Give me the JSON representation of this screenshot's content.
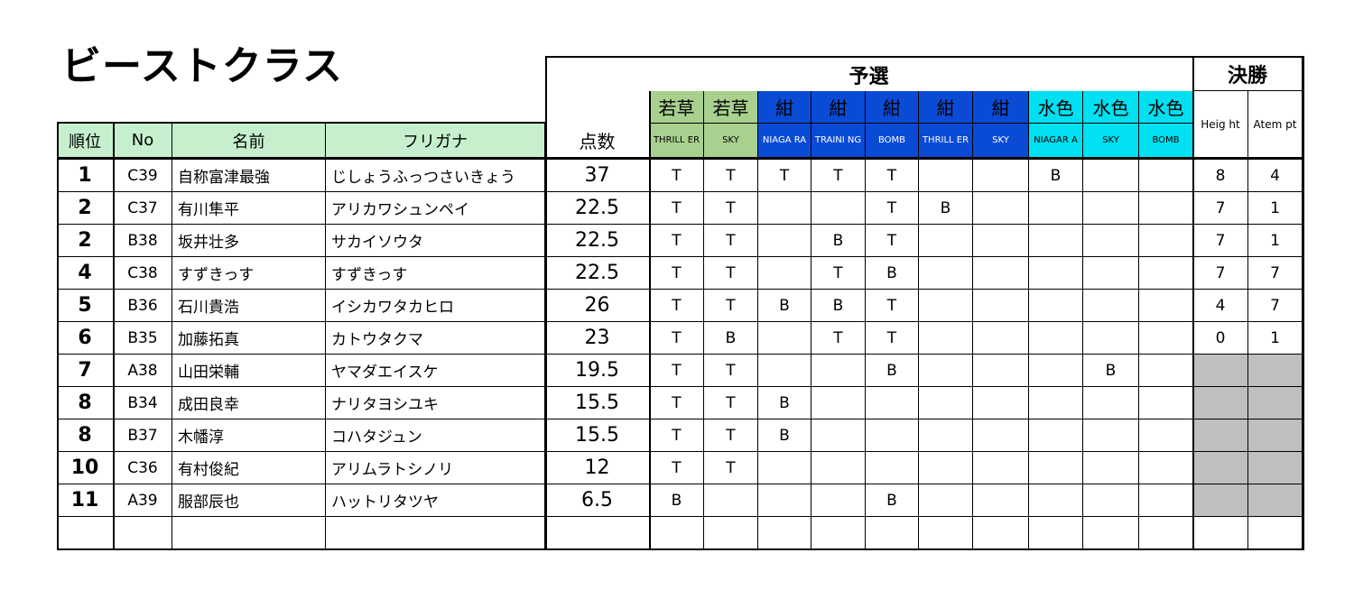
{
  "title": "ビーストクラス",
  "group_headers": {
    "qualifying": "予選",
    "final": "決勝"
  },
  "columns": {
    "rank": "順位",
    "no": "No",
    "name": "名前",
    "furigana": "フリガナ",
    "score": "点数",
    "height": "Heig ht",
    "attempt": "Atem pt"
  },
  "courses": [
    {
      "level": "若草",
      "name": "THRILL ER",
      "color": "#a9d08e"
    },
    {
      "level": "若草",
      "name": "SKY",
      "color": "#a9d08e"
    },
    {
      "level": "紺",
      "name": "NIAGA RA",
      "color": "#0070c0"
    },
    {
      "level": "紺",
      "name": "TRAINI NG",
      "color": "#0070c0"
    },
    {
      "level": "紺",
      "name": "BOMB",
      "color": "#0070c0"
    },
    {
      "level": "紺",
      "name": "THRILL ER",
      "color": "#0070c0"
    },
    {
      "level": "紺",
      "name": "SKY",
      "color": "#0070c0"
    },
    {
      "level": "水色",
      "name": "NIAGAR A",
      "color": "#00e0f0"
    },
    {
      "level": "水色",
      "name": "SKY",
      "color": "#00e0f0"
    },
    {
      "level": "水色",
      "name": "BOMB",
      "color": "#00e0f0"
    }
  ],
  "rows": [
    {
      "rank": "1",
      "no": "C39",
      "name": "自称富津最強",
      "furigana": "じしょうふっつさいきょう",
      "score": "37",
      "results": [
        "T",
        "T",
        "T",
        "T",
        "T",
        "",
        "",
        "B",
        "",
        ""
      ],
      "height": "8",
      "attempt": "4",
      "final_gray": false
    },
    {
      "rank": "2",
      "no": "C37",
      "name": "有川隼平",
      "furigana": "アリカワシュンペイ",
      "score": "22.5",
      "results": [
        "T",
        "T",
        "",
        "",
        "T",
        "B",
        "",
        "",
        "",
        ""
      ],
      "height": "7",
      "attempt": "1",
      "final_gray": false
    },
    {
      "rank": "2",
      "no": "B38",
      "name": "坂井壮多",
      "furigana": "サカイソウタ",
      "score": "22.5",
      "results": [
        "T",
        "T",
        "",
        "B",
        "T",
        "",
        "",
        "",
        "",
        ""
      ],
      "height": "7",
      "attempt": "1",
      "final_gray": false
    },
    {
      "rank": "4",
      "no": "C38",
      "name": "すずきっす",
      "furigana": "すずきっす",
      "score": "22.5",
      "results": [
        "T",
        "T",
        "",
        "T",
        "B",
        "",
        "",
        "",
        "",
        ""
      ],
      "height": "7",
      "attempt": "7",
      "final_gray": false
    },
    {
      "rank": "5",
      "no": "B36",
      "name": "石川貴浩",
      "furigana": "イシカワタカヒロ",
      "score": "26",
      "results": [
        "T",
        "T",
        "B",
        "B",
        "T",
        "",
        "",
        "",
        "",
        ""
      ],
      "height": "4",
      "attempt": "7",
      "final_gray": false
    },
    {
      "rank": "6",
      "no": "B35",
      "name": "加藤拓真",
      "furigana": "カトウタクマ",
      "score": "23",
      "results": [
        "T",
        "B",
        "",
        "T",
        "T",
        "",
        "",
        "",
        "",
        ""
      ],
      "height": "0",
      "attempt": "1",
      "final_gray": false
    },
    {
      "rank": "7",
      "no": "A38",
      "name": "山田栄輔",
      "furigana": "ヤマダエイスケ",
      "score": "19.5",
      "results": [
        "T",
        "T",
        "",
        "",
        "B",
        "",
        "",
        "",
        "B",
        ""
      ],
      "height": "",
      "attempt": "",
      "final_gray": true
    },
    {
      "rank": "8",
      "no": "B34",
      "name": "成田良幸",
      "furigana": "ナリタヨシユキ",
      "score": "15.5",
      "results": [
        "T",
        "T",
        "B",
        "",
        "",
        "",
        "",
        "",
        "",
        ""
      ],
      "height": "",
      "attempt": "",
      "final_gray": true
    },
    {
      "rank": "8",
      "no": "B37",
      "name": "木幡淳",
      "furigana": "コハタジュン",
      "score": "15.5",
      "results": [
        "T",
        "T",
        "B",
        "",
        "",
        "",
        "",
        "",
        "",
        ""
      ],
      "height": "",
      "attempt": "",
      "final_gray": true
    },
    {
      "rank": "10",
      "no": "C36",
      "name": "有村俊紀",
      "furigana": "アリムラトシノリ",
      "score": "12",
      "results": [
        "T",
        "T",
        "",
        "",
        "",
        "",
        "",
        "",
        "",
        ""
      ],
      "height": "",
      "attempt": "",
      "final_gray": true
    },
    {
      "rank": "11",
      "no": "A39",
      "name": "服部辰也",
      "furigana": "ハットリタツヤ",
      "score": "6.5",
      "results": [
        "B",
        "",
        "",
        "",
        "B",
        "",
        "",
        "",
        "",
        ""
      ],
      "height": "",
      "attempt": "",
      "final_gray": true
    },
    {
      "rank": "",
      "no": "",
      "name": "",
      "furigana": "",
      "score": "",
      "results": [
        "",
        "",
        "",
        "",
        "",
        "",
        "",
        "",
        "",
        ""
      ],
      "height": "",
      "attempt": "",
      "final_gray": false
    }
  ]
}
